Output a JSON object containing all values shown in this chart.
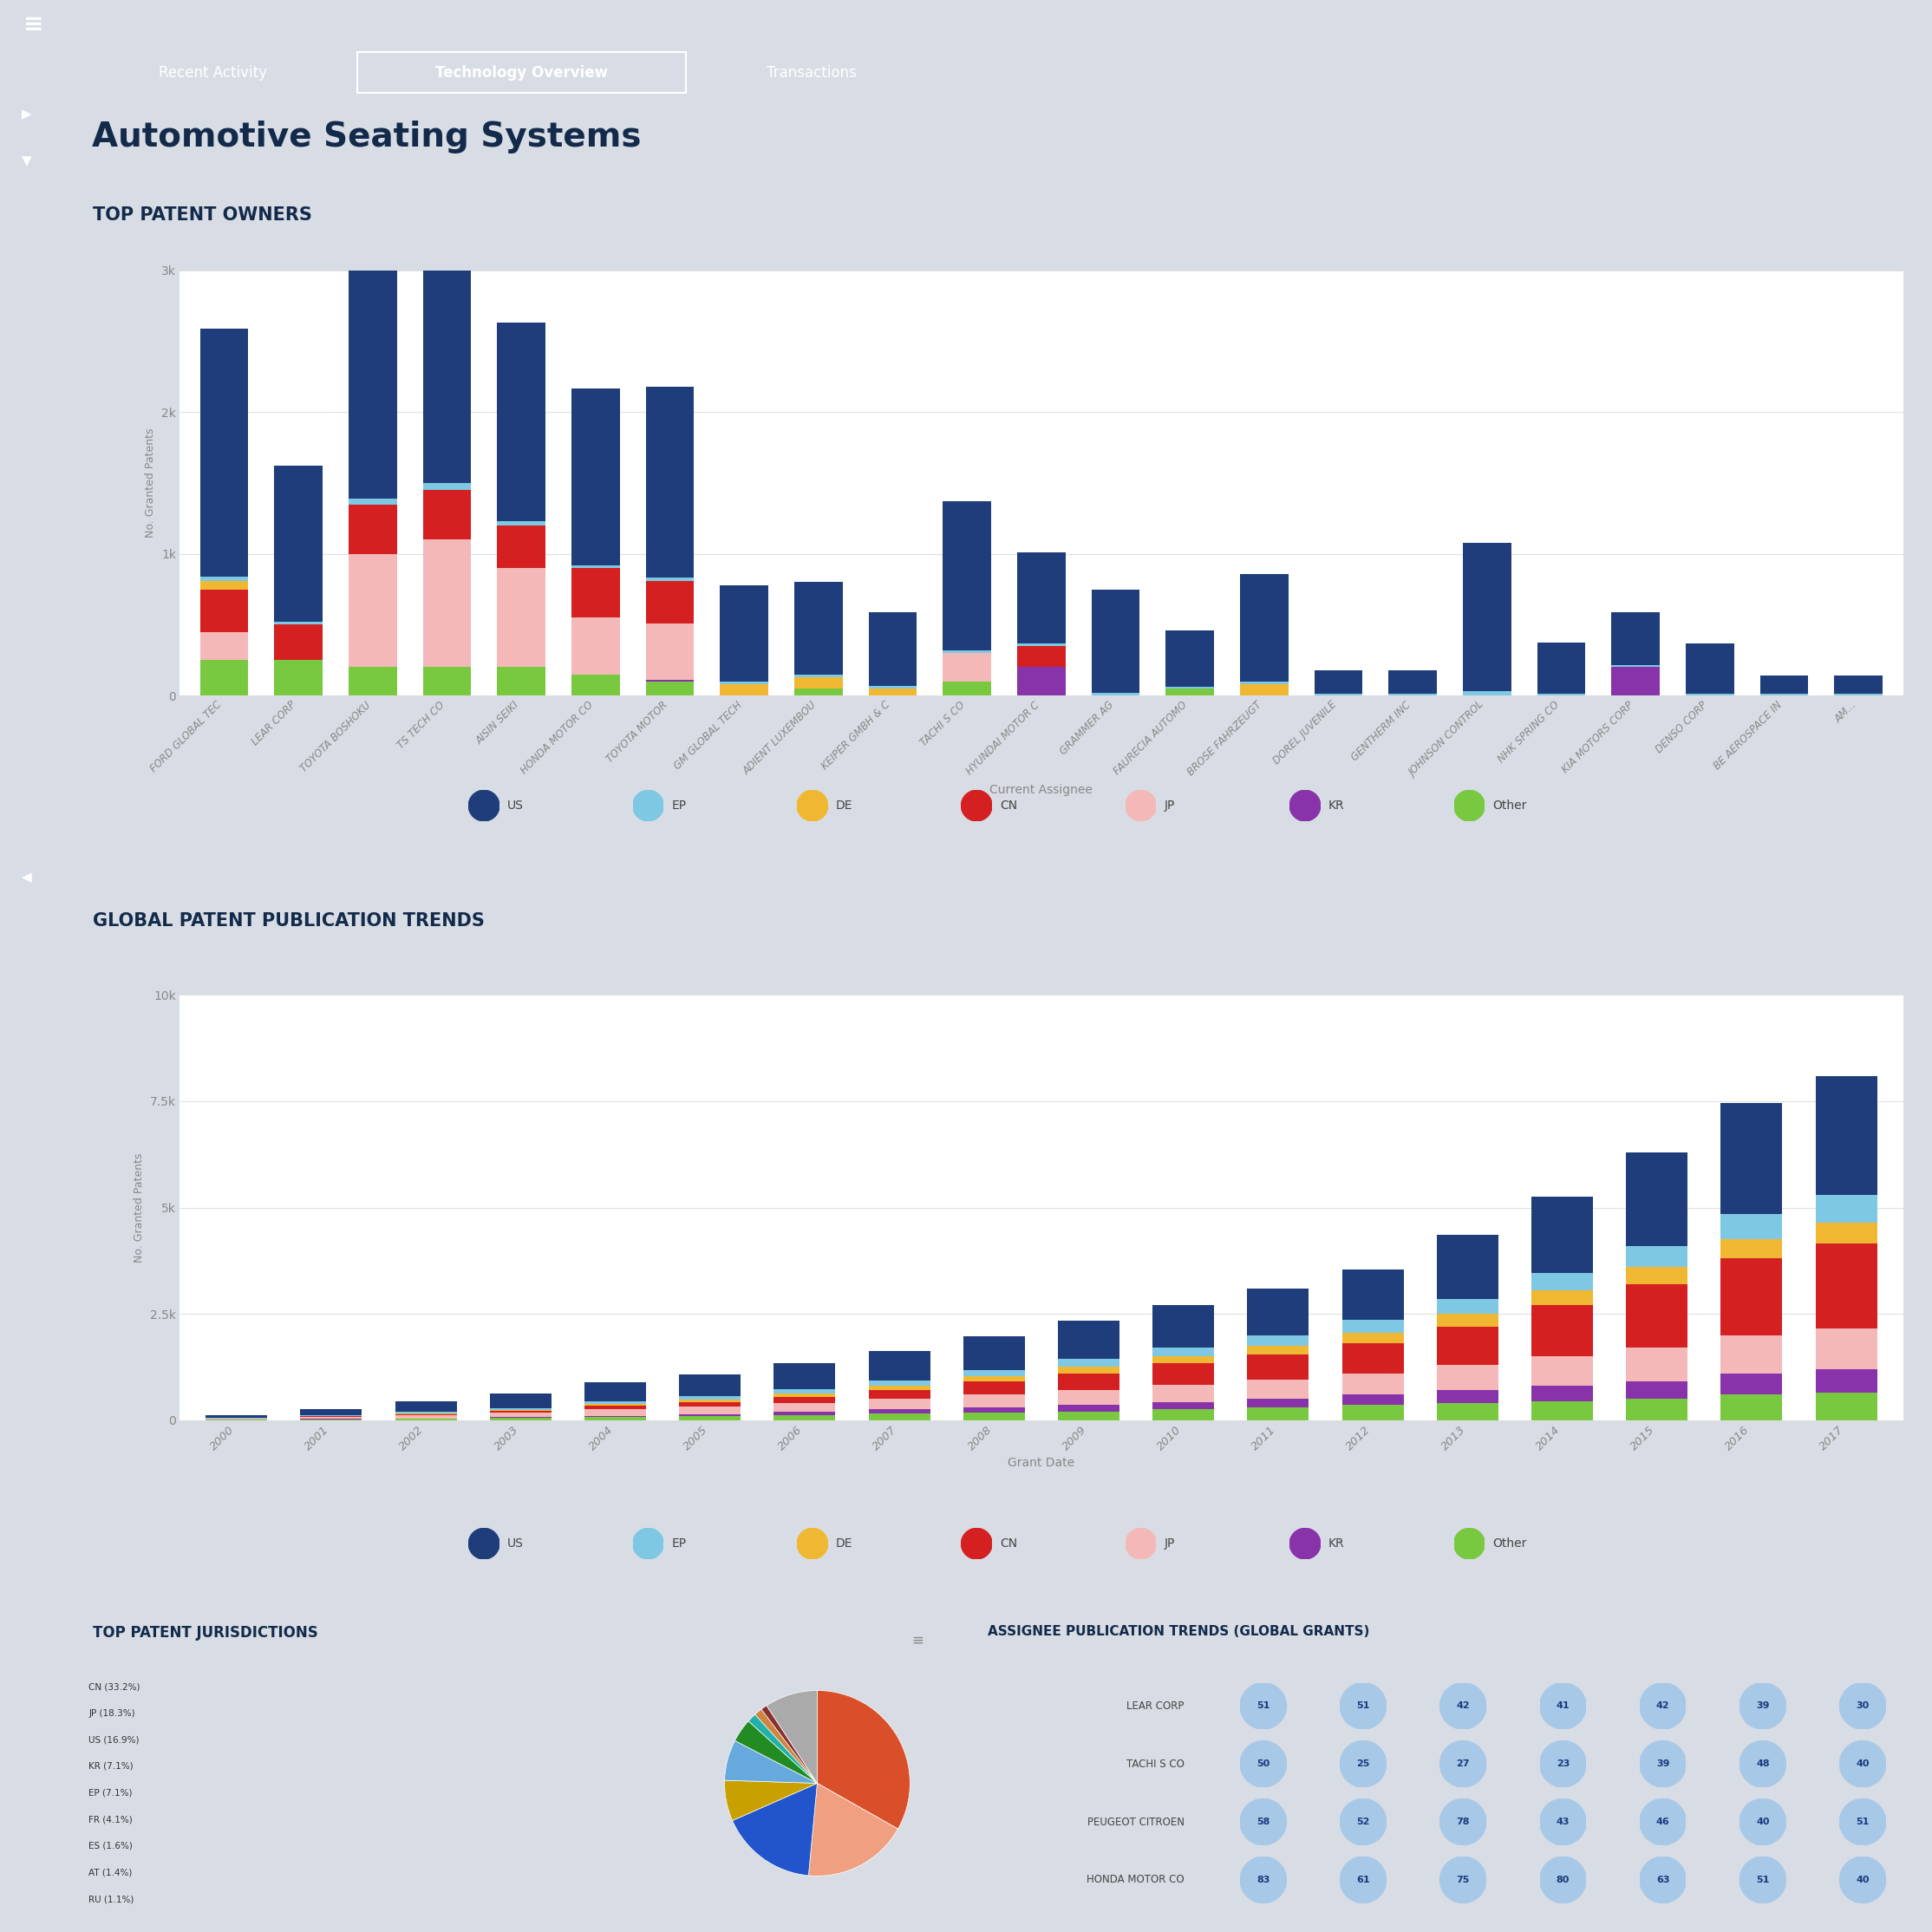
{
  "title": "Automotive Seating Systems",
  "nav_items": [
    "Recent Activity",
    "Technology Overview",
    "Transactions"
  ],
  "nav_active": "Technology Overview",
  "header_bg": "#132a4a",
  "nav_bg": "#2d5d9f",
  "page_bg": "#d8dde5",
  "card_bg": "#ffffff",
  "chart1_title": "TOP PATENT OWNERS",
  "chart1_xlabel": "Current Assignee",
  "chart1_ylabel": "No. Granted Patents",
  "chart1_ylim": [
    0,
    3000
  ],
  "chart1_yticks": [
    0,
    1000,
    2000,
    3000
  ],
  "chart1_ytick_labels": [
    "0",
    "1k",
    "2k",
    "3k"
  ],
  "chart1_categories": [
    "FORD GLOBAL TEC",
    "LEAR CORP",
    "TOYOTA BOSHOKU",
    "TS TECH CO",
    "AISIN SEIKI",
    "HONDA MOTOR CO",
    "TOYOTA MOTOR",
    "GM GLOBAL TECH",
    "ADIENT LUXEMBOU",
    "KEIPER GMBH & C",
    "TACHI S CO",
    "HYUNDAI MOTOR C",
    "GRAMMER AG",
    "FAURECIA AUTOMO",
    "BROSE FAHRZEUGT",
    "DOREL JUVENILE",
    "GENTHERM INC",
    "JOHNSON CONTROL",
    "NHK SPRING CO",
    "KIA MOTORS CORP",
    "DENSO CORP",
    "BE AEROSPACE IN",
    "AM..."
  ],
  "chart1_data": {
    "Other": [
      250,
      250,
      200,
      200,
      200,
      150,
      100,
      0,
      50,
      0,
      100,
      0,
      0,
      50,
      0,
      0,
      0,
      0,
      0,
      0,
      0,
      0,
      0
    ],
    "KR": [
      0,
      0,
      0,
      0,
      0,
      0,
      10,
      0,
      0,
      0,
      0,
      200,
      0,
      0,
      0,
      0,
      0,
      0,
      0,
      200,
      0,
      0,
      0
    ],
    "JP": [
      200,
      0,
      800,
      900,
      700,
      400,
      400,
      0,
      0,
      0,
      200,
      0,
      0,
      0,
      0,
      0,
      0,
      0,
      0,
      0,
      0,
      0,
      0
    ],
    "CN": [
      300,
      250,
      350,
      350,
      300,
      350,
      300,
      0,
      0,
      0,
      0,
      150,
      0,
      0,
      0,
      0,
      0,
      0,
      0,
      0,
      0,
      0,
      0
    ],
    "DE": [
      60,
      0,
      0,
      0,
      0,
      0,
      0,
      80,
      80,
      50,
      0,
      0,
      0,
      0,
      80,
      0,
      0,
      0,
      0,
      0,
      0,
      0,
      0
    ],
    "EP": [
      30,
      20,
      40,
      50,
      30,
      20,
      20,
      20,
      20,
      15,
      20,
      20,
      20,
      10,
      20,
      10,
      10,
      30,
      15,
      15,
      15,
      10,
      10
    ],
    "US": [
      1750,
      1100,
      1800,
      1950,
      1400,
      1250,
      1350,
      680,
      650,
      520,
      1050,
      640,
      730,
      400,
      760,
      170,
      170,
      1050,
      360,
      370,
      350,
      130,
      130
    ]
  },
  "chart2_title": "GLOBAL PATENT PUBLICATION TRENDS",
  "chart2_xlabel": "Grant Date",
  "chart2_ylabel": "No. Granted Patents",
  "chart2_ylim": [
    0,
    10000
  ],
  "chart2_yticks": [
    0,
    2500,
    5000,
    7500,
    10000
  ],
  "chart2_ytick_labels": [
    "0",
    "2.5k",
    "5k",
    "7.5k",
    "10k"
  ],
  "chart2_categories": [
    "2000",
    "2001",
    "2002",
    "2003",
    "2004",
    "2005",
    "2006",
    "2007",
    "2008",
    "2009",
    "2010",
    "2011",
    "2012",
    "2013",
    "2014",
    "2015",
    "2016",
    "2017"
  ],
  "chart2_data": {
    "Other": [
      10,
      20,
      30,
      50,
      70,
      90,
      120,
      150,
      180,
      200,
      250,
      300,
      350,
      400,
      450,
      500,
      600,
      650
    ],
    "KR": [
      2,
      5,
      10,
      20,
      30,
      50,
      70,
      100,
      120,
      150,
      180,
      200,
      250,
      300,
      350,
      400,
      500,
      550
    ],
    "JP": [
      20,
      50,
      80,
      100,
      150,
      180,
      200,
      250,
      300,
      350,
      400,
      450,
      500,
      600,
      700,
      800,
      900,
      950
    ],
    "CN": [
      5,
      10,
      20,
      40,
      80,
      100,
      150,
      200,
      300,
      400,
      500,
      600,
      700,
      900,
      1200,
      1500,
      1800,
      2000
    ],
    "DE": [
      5,
      10,
      20,
      30,
      50,
      70,
      90,
      110,
      130,
      150,
      180,
      200,
      250,
      300,
      350,
      400,
      450,
      500
    ],
    "EP": [
      10,
      20,
      30,
      40,
      60,
      80,
      100,
      120,
      150,
      180,
      200,
      250,
      300,
      350,
      400,
      500,
      600,
      650
    ],
    "US": [
      60,
      150,
      250,
      350,
      450,
      500,
      600,
      700,
      800,
      900,
      1000,
      1100,
      1200,
      1500,
      1800,
      2200,
      2600,
      2800
    ]
  },
  "chart3_title": "TOP PATENT JURISDICTIONS",
  "chart3_labels": [
    "CN (33.2%)",
    "JP (18.3%)",
    "US (16.9%)",
    "KR (7.1%)",
    "EP (7.1%)",
    "FR (4.1%)",
    "ES (1.6%)",
    "AT (1.4%)",
    "RU (1.1%)"
  ],
  "chart3_values": [
    33.2,
    18.3,
    16.9,
    7.1,
    7.1,
    4.1,
    1.6,
    1.4,
    1.1,
    9.2
  ],
  "chart3_colors": [
    "#d94f2a",
    "#f0a080",
    "#2255cc",
    "#c8a000",
    "#66aadd",
    "#228b22",
    "#20b2aa",
    "#cd853f",
    "#8b3030",
    "#aaaaaa"
  ],
  "chart3_line_labels": [
    "CN (33.2%)",
    "JP (18.3%)",
    "US (16.9%)",
    "KR (7.1%)",
    "EP (7.1%)",
    "FR (4.1%)",
    "ES (1.6%)",
    "AT (1.4%)",
    "RU (1.1%)"
  ],
  "chart4_title": "ASSIGNEE PUBLICATION TRENDS (GLOBAL GRANTS)",
  "chart4_rows": [
    "LEAR CORP",
    "TACHI S CO",
    "PEUGEOT CITROEN",
    "HONDA MOTOR CO"
  ],
  "chart4_data": [
    [
      51,
      51,
      42,
      41,
      42,
      39,
      30
    ],
    [
      50,
      25,
      27,
      23,
      39,
      48,
      40
    ],
    [
      58,
      52,
      78,
      43,
      46,
      40,
      51
    ],
    [
      83,
      61,
      75,
      80,
      63,
      51,
      40
    ]
  ],
  "chart4_bubble_color": "#a8c8e8",
  "chart4_text_color": "#1a3a7c",
  "seg_order": [
    "Other",
    "KR",
    "JP",
    "CN",
    "DE",
    "EP",
    "US"
  ],
  "colors": {
    "US": "#1e3d7a",
    "EP": "#7ec8e3",
    "DE": "#f0b832",
    "CN": "#d42020",
    "JP": "#f5b8b8",
    "KR": "#8833aa",
    "Other": "#78c840"
  },
  "legend_labels": [
    "US",
    "EP",
    "DE",
    "CN",
    "JP",
    "KR",
    "Other"
  ]
}
